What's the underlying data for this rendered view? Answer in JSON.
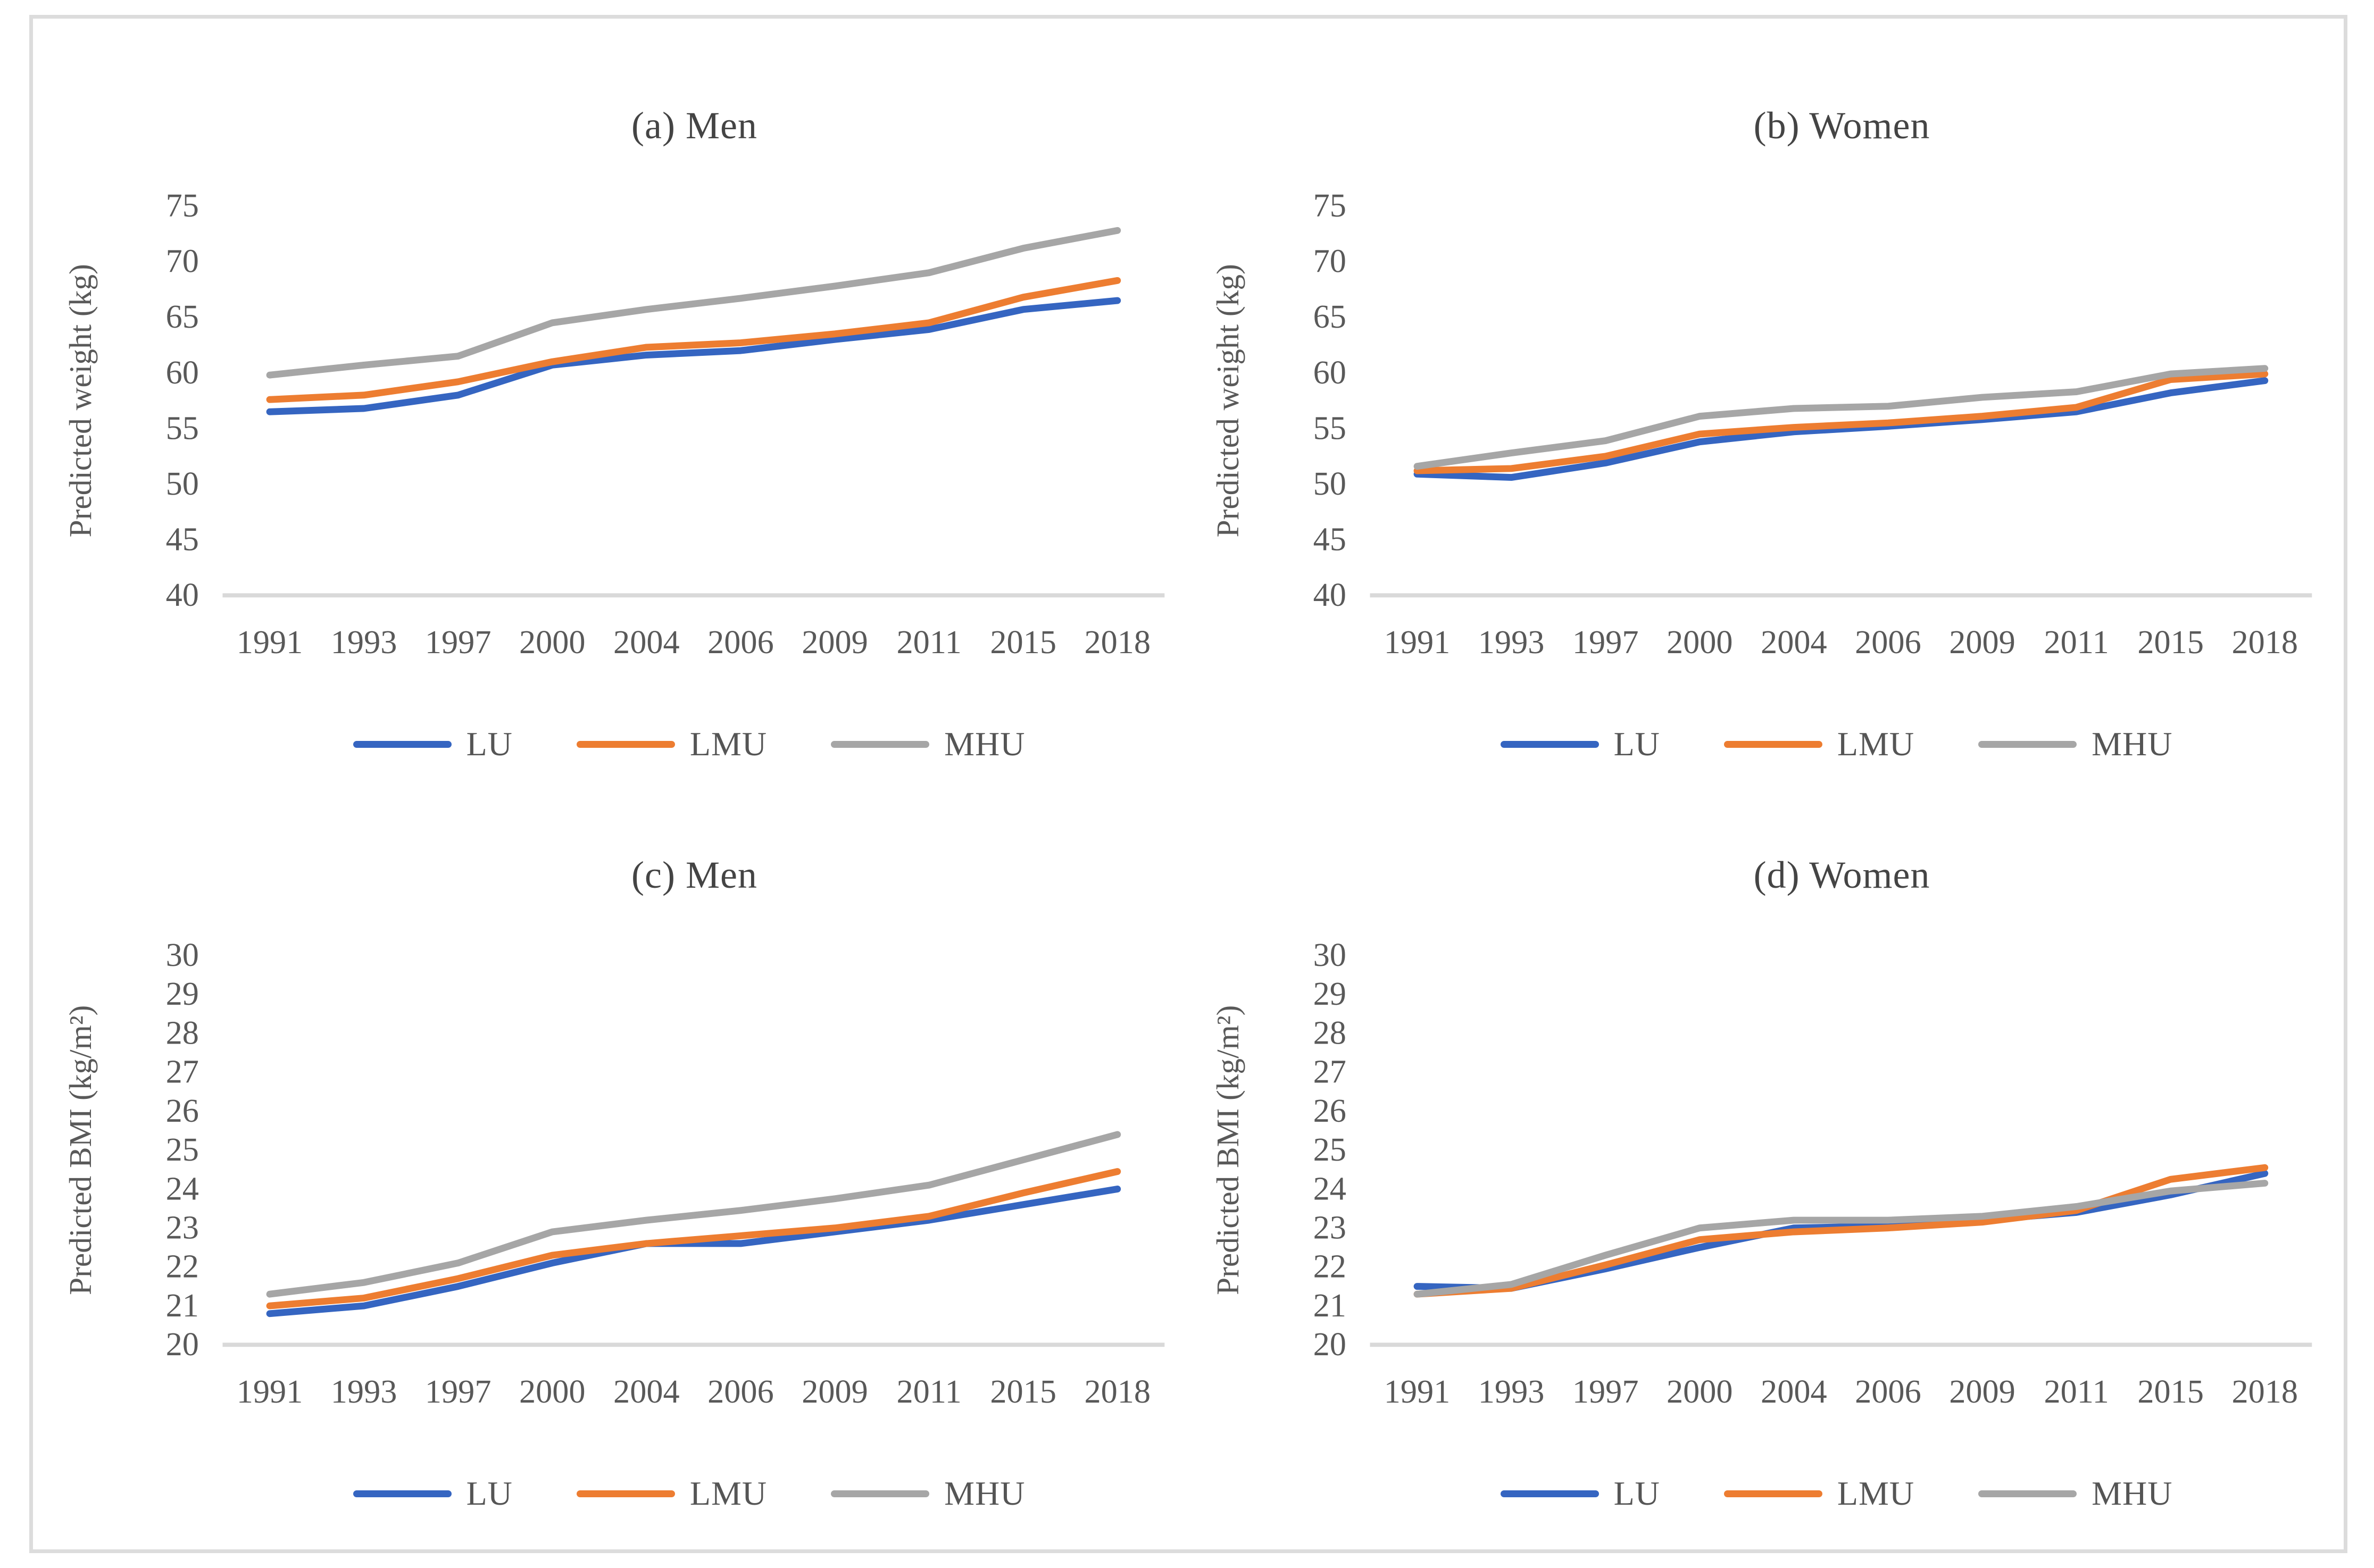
{
  "figure": {
    "border_color": "#dcdcdc",
    "background": "#ffffff",
    "axis_color": "#d9d9d9",
    "text_color": "#595959"
  },
  "chart_data": [
    {
      "id": "a",
      "type": "line",
      "title": "(a) Men",
      "ylabel": "Predicted weight (kg)",
      "xlabel": "",
      "ylim": [
        40,
        75
      ],
      "yticks": [
        40,
        45,
        50,
        55,
        60,
        65,
        70,
        75
      ],
      "grid": false,
      "legend_position": "bottom",
      "categories": [
        "1991",
        "1993",
        "1997",
        "2000",
        "2004",
        "2006",
        "2009",
        "2011",
        "2015",
        "2018"
      ],
      "series": [
        {
          "name": "LU",
          "color": "#3565c1",
          "values": [
            56.5,
            56.8,
            58.0,
            60.7,
            61.6,
            62.0,
            63.0,
            63.9,
            65.7,
            66.5
          ]
        },
        {
          "name": "LMU",
          "color": "#ED7D31",
          "values": [
            57.6,
            58.0,
            59.2,
            61.0,
            62.3,
            62.7,
            63.5,
            64.5,
            66.8,
            68.3
          ]
        },
        {
          "name": "MHU",
          "color": "#A6A6A6",
          "values": [
            59.8,
            60.7,
            61.5,
            64.5,
            65.7,
            66.7,
            67.8,
            69.0,
            71.2,
            72.8
          ]
        }
      ]
    },
    {
      "id": "b",
      "type": "line",
      "title": "(b) Women",
      "ylabel": "Predicted weight (kg)",
      "xlabel": "",
      "ylim": [
        40,
        75
      ],
      "yticks": [
        40,
        45,
        50,
        55,
        60,
        65,
        70,
        75
      ],
      "grid": false,
      "legend_position": "bottom",
      "categories": [
        "1991",
        "1993",
        "1997",
        "2000",
        "2004",
        "2006",
        "2009",
        "2011",
        "2015",
        "2018"
      ],
      "series": [
        {
          "name": "LU",
          "color": "#3565c1",
          "values": [
            50.9,
            50.6,
            51.9,
            53.8,
            54.7,
            55.2,
            55.8,
            56.5,
            58.2,
            59.3
          ]
        },
        {
          "name": "LMU",
          "color": "#ED7D31",
          "values": [
            51.2,
            51.4,
            52.5,
            54.5,
            55.1,
            55.5,
            56.1,
            56.9,
            59.4,
            59.9
          ]
        },
        {
          "name": "MHU",
          "color": "#A6A6A6",
          "values": [
            51.6,
            52.8,
            53.9,
            56.1,
            56.8,
            57.0,
            57.8,
            58.3,
            59.9,
            60.4
          ]
        }
      ]
    },
    {
      "id": "c",
      "type": "line",
      "title": "(c) Men",
      "ylabel": "Predicted BMI (kg/m²)",
      "xlabel": "",
      "ylim": [
        20,
        30
      ],
      "yticks": [
        20,
        21,
        22,
        23,
        24,
        25,
        26,
        27,
        28,
        29,
        30
      ],
      "grid": false,
      "legend_position": "bottom",
      "categories": [
        "1991",
        "1993",
        "1997",
        "2000",
        "2004",
        "2006",
        "2009",
        "2011",
        "2015",
        "2018"
      ],
      "series": [
        {
          "name": "LU",
          "color": "#3565c1",
          "values": [
            20.8,
            21.0,
            21.5,
            22.1,
            22.6,
            22.6,
            22.9,
            23.2,
            23.6,
            24.0
          ]
        },
        {
          "name": "LMU",
          "color": "#ED7D31",
          "values": [
            21.0,
            21.2,
            21.7,
            22.3,
            22.6,
            22.8,
            23.0,
            23.3,
            23.9,
            24.45
          ]
        },
        {
          "name": "MHU",
          "color": "#A6A6A6",
          "values": [
            21.3,
            21.6,
            22.1,
            22.9,
            23.2,
            23.45,
            23.75,
            24.1,
            24.75,
            25.4
          ]
        }
      ]
    },
    {
      "id": "d",
      "type": "line",
      "title": "(d) Women",
      "ylabel": "Predicted BMI (kg/m²)",
      "xlabel": "",
      "ylim": [
        20,
        30
      ],
      "yticks": [
        20,
        21,
        22,
        23,
        24,
        25,
        26,
        27,
        28,
        29,
        30
      ],
      "grid": false,
      "legend_position": "bottom",
      "categories": [
        "1991",
        "1993",
        "1997",
        "2000",
        "2004",
        "2006",
        "2009",
        "2011",
        "2015",
        "2018"
      ],
      "series": [
        {
          "name": "LU",
          "color": "#3565c1",
          "values": [
            21.5,
            21.45,
            21.95,
            22.5,
            23.0,
            23.05,
            23.2,
            23.4,
            23.85,
            24.4
          ]
        },
        {
          "name": "LMU",
          "color": "#ED7D31",
          "values": [
            21.3,
            21.45,
            22.05,
            22.7,
            22.9,
            23.0,
            23.15,
            23.45,
            24.25,
            24.55
          ]
        },
        {
          "name": "MHU",
          "color": "#A6A6A6",
          "values": [
            21.3,
            21.55,
            22.3,
            23.0,
            23.2,
            23.2,
            23.3,
            23.55,
            23.95,
            24.15
          ]
        }
      ]
    }
  ]
}
